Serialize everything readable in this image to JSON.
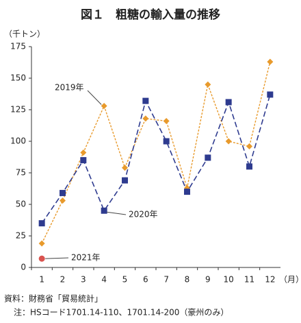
{
  "chart_data": {
    "type": "line",
    "title": "図１　粗糖の輸入量の推移",
    "y_unit": "（千トン）",
    "x_unit": "（月）",
    "categories": [
      "1",
      "2",
      "3",
      "4",
      "5",
      "6",
      "7",
      "8",
      "9",
      "10",
      "11",
      "12"
    ],
    "series": [
      {
        "name": "2019年",
        "color": "#e89a2c",
        "marker": "diamond",
        "values": [
          19,
          53,
          91,
          128,
          79,
          118,
          116,
          63,
          145,
          100,
          96,
          163
        ]
      },
      {
        "name": "2020年",
        "color": "#2e3b8f",
        "marker": "square",
        "values": [
          35,
          59,
          85,
          45,
          69,
          132,
          100,
          60,
          87,
          131,
          80,
          137
        ]
      },
      {
        "name": "2021年",
        "color": "#d9534f",
        "marker": "circle",
        "values": [
          7,
          null,
          null,
          null,
          null,
          null,
          null,
          null,
          null,
          null,
          null,
          null
        ]
      }
    ],
    "ylim": [
      0,
      175
    ],
    "yticks": [
      0,
      25,
      50,
      75,
      100,
      125,
      150,
      175
    ],
    "grid": false,
    "notes": [
      "資料：財務省「貿易統計」",
      "注：HSコード1701.14-110、1701.14-200（豪州のみ）"
    ]
  }
}
